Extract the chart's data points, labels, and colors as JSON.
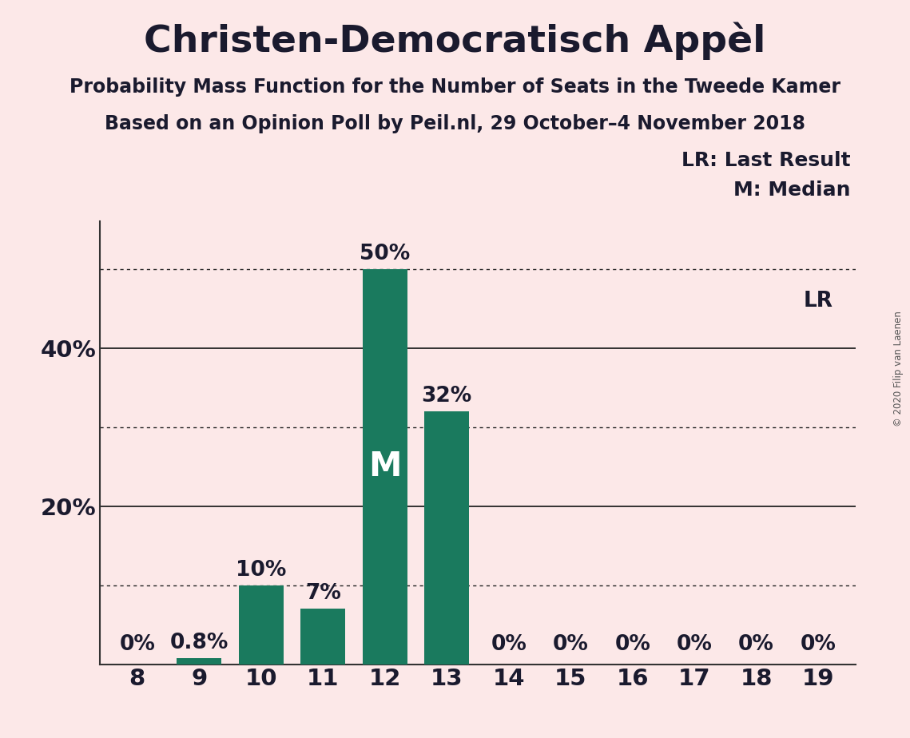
{
  "title": "Christen-Democratisch Appèl",
  "subtitle1": "Probability Mass Function for the Number of Seats in the Tweede Kamer",
  "subtitle2": "Based on an Opinion Poll by Peil.nl, 29 October–4 November 2018",
  "copyright": "© 2020 Filip van Laenen",
  "categories": [
    8,
    9,
    10,
    11,
    12,
    13,
    14,
    15,
    16,
    17,
    18,
    19
  ],
  "values": [
    0,
    0.8,
    10,
    7,
    50,
    32,
    0,
    0,
    0,
    0,
    0,
    0
  ],
  "bar_color": "#1a7a5e",
  "background_color": "#fce8e8",
  "text_color": "#1a1a2e",
  "median_seat": 12,
  "last_result_seat": 19,
  "legend_text": [
    "LR: Last Result",
    "M: Median"
  ],
  "ylim": [
    0,
    56
  ],
  "dotted_lines": [
    10,
    30,
    50
  ],
  "solid_lines": [
    20,
    40
  ],
  "bar_labels": [
    "0%",
    "0.8%",
    "10%",
    "7%",
    "50%",
    "32%",
    "0%",
    "0%",
    "0%",
    "0%",
    "0%",
    "0%"
  ],
  "median_label": "M",
  "lr_label": "LR",
  "ytick_positions": [
    20,
    40
  ],
  "ytick_labels": [
    "20%",
    "40%"
  ],
  "title_fontsize": 34,
  "subtitle_fontsize": 17,
  "tick_fontsize": 21,
  "bar_label_fontsize": 19,
  "legend_fontsize": 18,
  "median_fontsize": 30
}
